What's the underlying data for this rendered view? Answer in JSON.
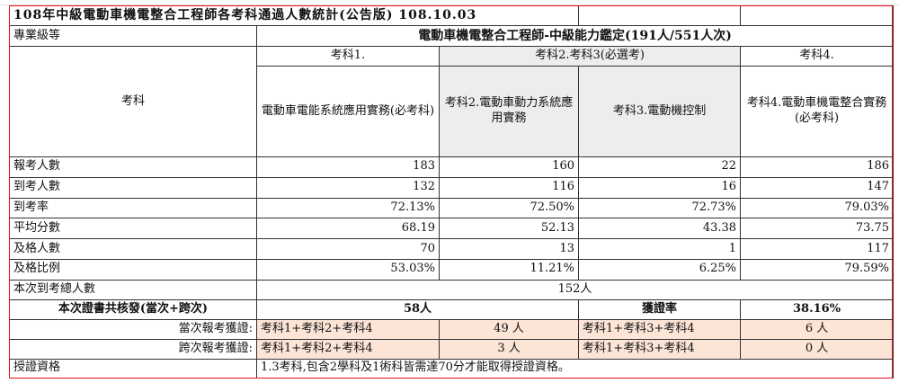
{
  "title": "108年中級電動車機電整合工程師各考科通過人數統計(公告版) 108.10.03",
  "header": {
    "level_label": "專業級等",
    "level_value": "電動車機電整合工程師-中級能力鑑定(191人/551人次)",
    "subject_label": "考科",
    "group1": "考科1.",
    "group23": "考科2.考科3(必選考)",
    "group4": "考科4.",
    "subjects": [
      "電動車電能系統應用實務(必考科)",
      "考科2.電動車動力系統應用實務",
      "考科3.電動機控制",
      "考科4.電動車機電整合實務(必考科)"
    ]
  },
  "rows": [
    {
      "label": "報考人數",
      "values": [
        "183",
        "160",
        "22",
        "186"
      ]
    },
    {
      "label": "到考人數",
      "values": [
        "132",
        "116",
        "16",
        "147"
      ]
    },
    {
      "label": "到考率",
      "values": [
        "72.13%",
        "72.50%",
        "72.73%",
        "79.03%"
      ]
    },
    {
      "label": "平均分數",
      "values": [
        "68.19",
        "52.13",
        "43.38",
        "73.75"
      ]
    },
    {
      "label": "及格人數",
      "values": [
        "70",
        "13",
        "1",
        "117"
      ]
    },
    {
      "label": "及格比例",
      "values": [
        "53.03%",
        "11.21%",
        "6.25%",
        "79.59%"
      ]
    }
  ],
  "summary": {
    "total_label": "本次到考總人數",
    "total_value": "152人",
    "cert_label": "本次證書共核發(當次+跨次)",
    "cert_value": "58人",
    "rate_label": "獲證率",
    "rate_value": "38.16%",
    "current": {
      "label": "當次報考獲證:",
      "combo_a": "考科1+考科2+考科4",
      "count_a": "49 人",
      "combo_b": "考科1+考科3+考科4",
      "count_b": "6 人"
    },
    "cross": {
      "label": "跨次報考獲證:",
      "combo_a": "考科1+考科2+考科4",
      "count_a": "3 人",
      "combo_b": "考科1+考科3+考科4",
      "count_b": "0 人"
    },
    "qual_label": "授證資格",
    "qual_value": "1.3考科,包含2學科及1術科皆需達70分才能取得授證資格。"
  },
  "colors": {
    "border_highlight": "#e8121a",
    "gray_fill": "#ededed",
    "peach_fill": "#fce4d6"
  }
}
